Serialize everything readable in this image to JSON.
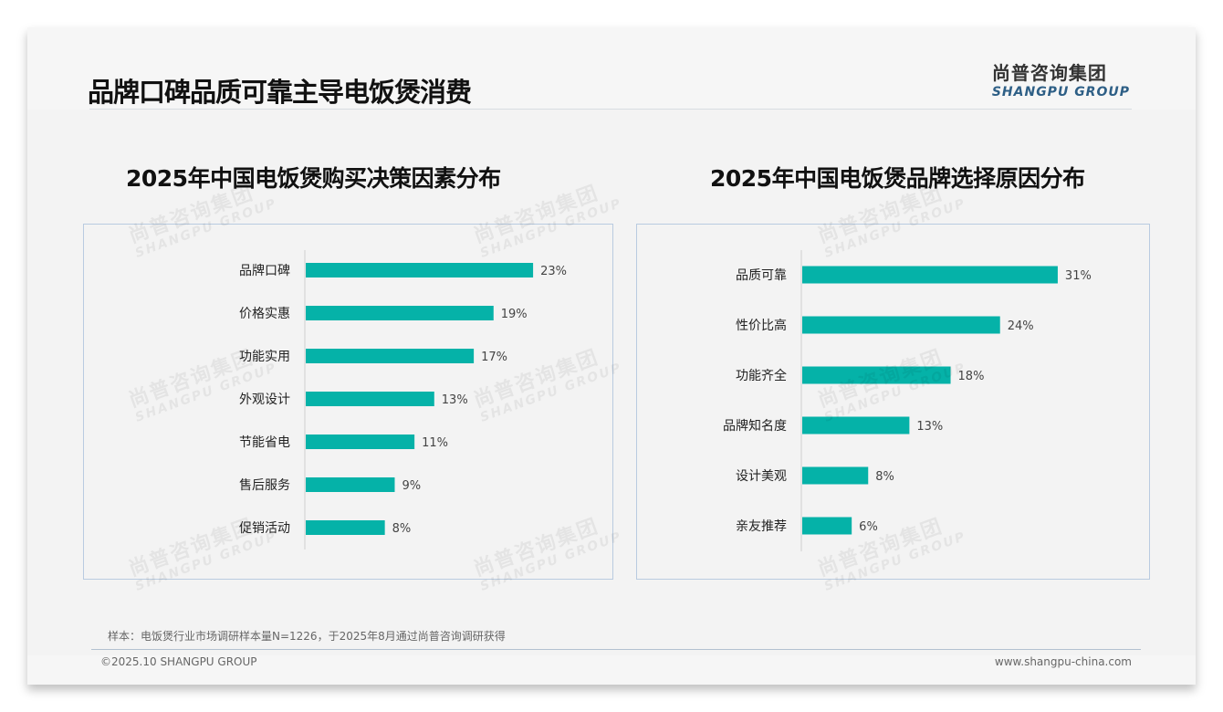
{
  "title": "品牌口碑品质可靠主导电饭煲消费",
  "logo": {
    "cn": "尚普咨询集团",
    "en": "SHANGPU GROUP"
  },
  "note": "样本：电饭煲行业市场调研样本量N=1226，于2025年8月通过尚普咨询调研获得",
  "footer": {
    "copyright": "©2025.10 SHANGPU GROUP",
    "url": "www.shangpu-china.com"
  },
  "colors": {
    "bar": "#05b2a8"
  },
  "chart_data": [
    {
      "type": "bar",
      "orientation": "horizontal",
      "title": "2025年中国电饭煲购买决策因素分布",
      "categories": [
        "品牌口碑",
        "价格实惠",
        "功能实用",
        "外观设计",
        "节能省电",
        "售后服务",
        "促销活动"
      ],
      "values": [
        23,
        19,
        17,
        13,
        11,
        9,
        8
      ],
      "labels": [
        "23%",
        "19%",
        "17%",
        "13%",
        "11%",
        "9%",
        "8%"
      ],
      "unit": "%",
      "xlim": [
        0,
        28
      ]
    },
    {
      "type": "bar",
      "orientation": "horizontal",
      "title": "2025年中国电饭煲品牌选择原因分布",
      "categories": [
        "品质可靠",
        "性价比高",
        "功能齐全",
        "品牌知名度",
        "设计美观",
        "亲友推荐"
      ],
      "values": [
        31,
        24,
        18,
        13,
        8,
        6
      ],
      "labels": [
        "31%",
        "24%",
        "18%",
        "13%",
        "8%",
        "6%"
      ],
      "unit": "%",
      "xlim": [
        0,
        40
      ]
    }
  ]
}
